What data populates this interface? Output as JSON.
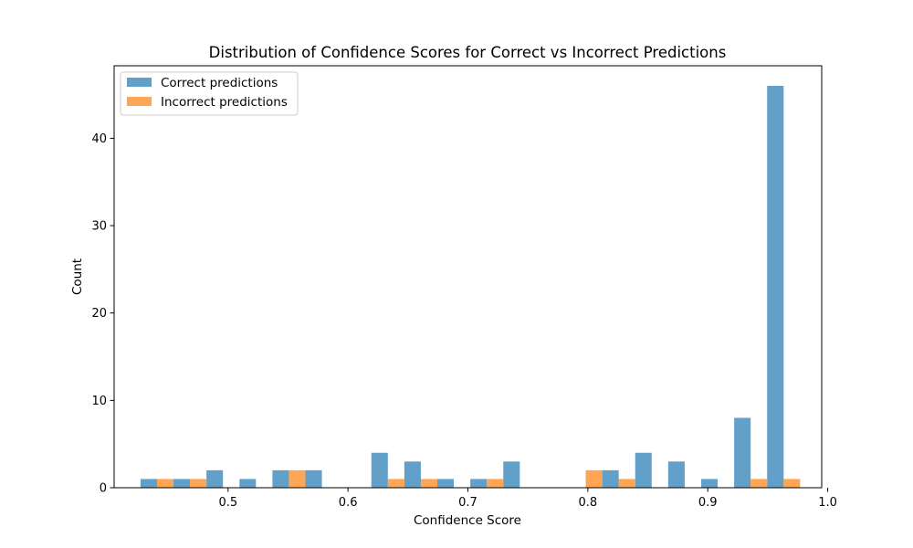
{
  "chart_data": {
    "type": "bar",
    "title": "Distribution of Confidence Scores for Correct vs Incorrect Predictions",
    "xlabel": "Confidence Score",
    "ylabel": "Count",
    "xlim": [
      0.405,
      0.995
    ],
    "ylim": [
      0,
      48.3
    ],
    "xticks": [
      0.5,
      0.6,
      0.7,
      0.8,
      0.9,
      1.0
    ],
    "xtick_labels": [
      "0.5",
      "0.6",
      "0.7",
      "0.8",
      "0.9",
      "1.0"
    ],
    "yticks": [
      0,
      10,
      20,
      30,
      40
    ],
    "ytick_labels": [
      "0",
      "10",
      "20",
      "30",
      "40"
    ],
    "grid": false,
    "legend_position": "top-left",
    "bin_edges": [
      0.427,
      0.4545,
      0.482,
      0.5095,
      0.537,
      0.5645,
      0.592,
      0.6195,
      0.647,
      0.6745,
      0.702,
      0.7295,
      0.757,
      0.7845,
      0.812,
      0.8395,
      0.867,
      0.8945,
      0.922,
      0.9495,
      0.977
    ],
    "series": [
      {
        "name": "Correct predictions",
        "color": "#1f77b4",
        "alpha": 0.7,
        "values": [
          1,
          1,
          2,
          1,
          2,
          2,
          0,
          4,
          3,
          1,
          1,
          3,
          0,
          0,
          2,
          4,
          3,
          1,
          8,
          46
        ]
      },
      {
        "name": "Incorrect predictions",
        "color": "#ff7f0e",
        "alpha": 0.7,
        "values": [
          1,
          1,
          0,
          0,
          2,
          0,
          0,
          1,
          1,
          0,
          1,
          0,
          0,
          2,
          1,
          0,
          0,
          0,
          1,
          1
        ]
      }
    ]
  }
}
